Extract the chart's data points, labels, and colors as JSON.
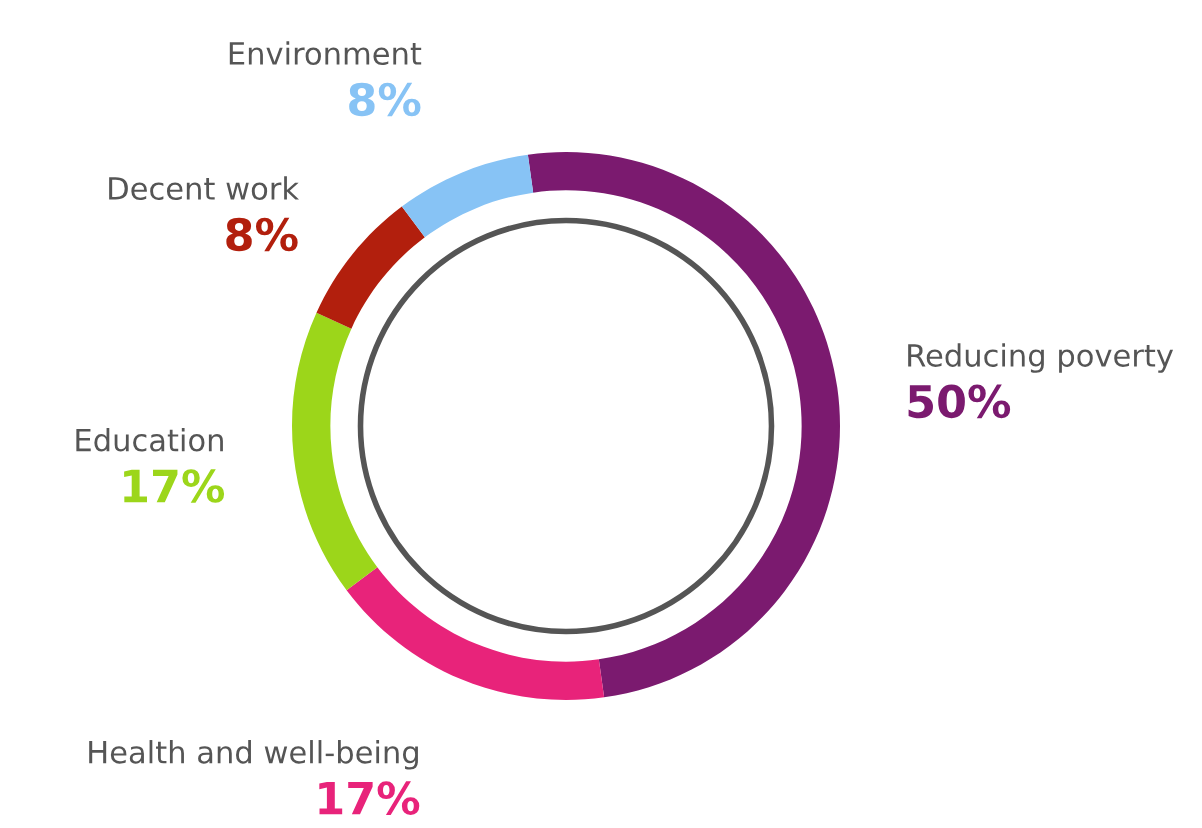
{
  "chart_data": {
    "type": "donut",
    "categories": [
      "Reducing poverty",
      "Health and well-being",
      "Education",
      "Decent work",
      "Environment"
    ],
    "values": [
      50,
      17,
      17,
      8,
      8
    ],
    "colors": [
      "#7b1a6f",
      "#e8237a",
      "#9cd61a",
      "#b21f0d",
      "#87c3f5"
    ],
    "value_labels": [
      "50%",
      "17%",
      "17%",
      "8%",
      "8%"
    ]
  }
}
